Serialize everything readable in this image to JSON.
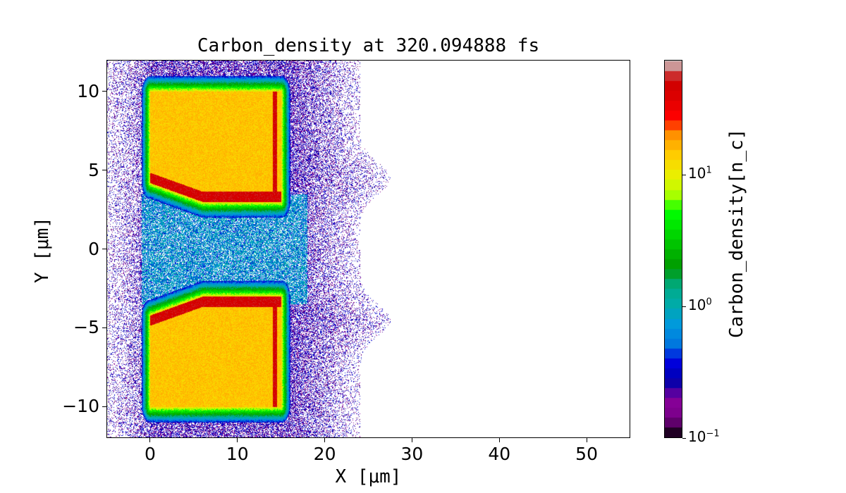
{
  "chart_data": {
    "type": "heatmap",
    "title": "Carbon_density at 320.094888 fs",
    "xlabel": "X [μm]",
    "ylabel": "Y [μm]",
    "xlim": [
      -5,
      55
    ],
    "ylim": [
      -12,
      12
    ],
    "xticks": [
      0,
      10,
      20,
      30,
      40,
      50
    ],
    "xtick_labels": [
      "0",
      "10",
      "20",
      "30",
      "40",
      "50"
    ],
    "yticks": [
      10,
      5,
      0,
      -5,
      -10
    ],
    "ytick_labels": [
      "10",
      "5",
      "0",
      "−5",
      "−10"
    ],
    "colorbar": {
      "label": "Carbon_density[n_c]",
      "scale": "log",
      "range": [
        0.1,
        75
      ],
      "colormap": "nipy_spectral (discrete)",
      "ticks": [
        {
          "value": 10,
          "base": "10",
          "exp": "1"
        },
        {
          "value": 1,
          "base": "10",
          "exp": "0"
        },
        {
          "value": 0.1,
          "base": "10",
          "exp": "−1"
        }
      ]
    },
    "features": [
      {
        "name": "upper slab",
        "x_range": [
          0,
          15
        ],
        "y_range": [
          3.4,
          10
        ],
        "density": 15
      },
      {
        "name": "lower slab",
        "x_range": [
          0,
          15
        ],
        "y_range": [
          -10,
          -3.4
        ],
        "density": 15
      }
    ]
  }
}
